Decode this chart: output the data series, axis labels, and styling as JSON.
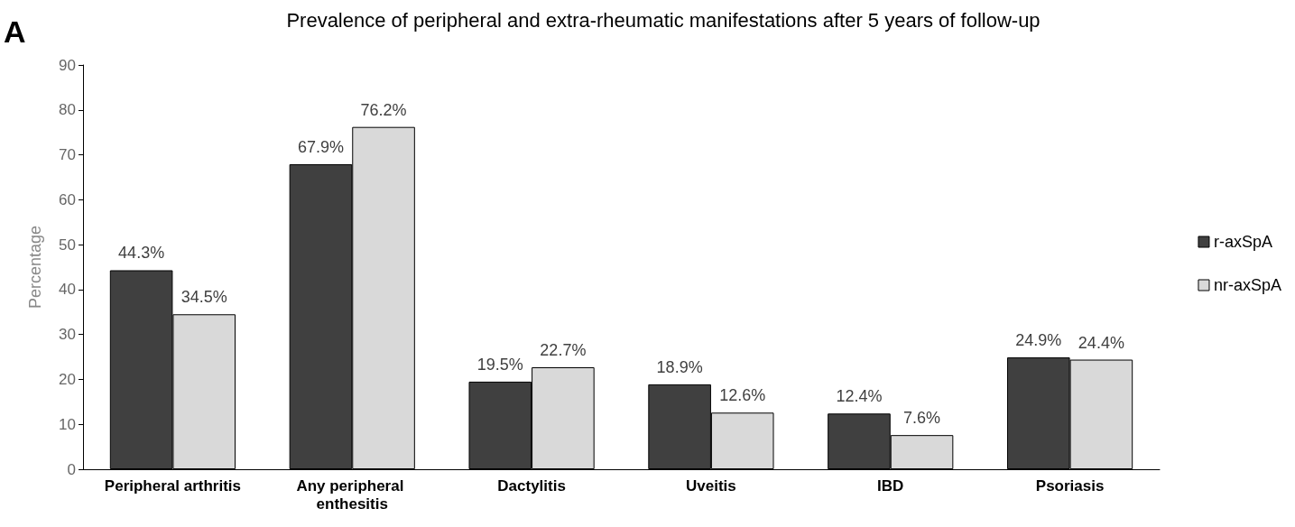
{
  "chart_data": {
    "type": "bar",
    "title": "Prevalence of peripheral and extra-rheumatic manifestations after 5 years of follow-up",
    "ylabel": "Percentage",
    "annotations": [
      "A"
    ],
    "categories": [
      "Peripheral arthritis",
      "Any peripheral enthesitis",
      "Dactylitis",
      "Uveitis",
      "IBD",
      "Psoriasis"
    ],
    "series": [
      {
        "name": "r-axSpA",
        "color": "#404040",
        "values": [
          44.3,
          67.9,
          19.5,
          18.9,
          12.4,
          24.9
        ],
        "value_labels": [
          "44.3%",
          "67.9%",
          "19.5%",
          "18.9%",
          "12.4%",
          "24.9%"
        ]
      },
      {
        "name": "nr-axSpA",
        "color": "#d9d9d9",
        "values": [
          34.5,
          76.2,
          22.7,
          12.6,
          7.6,
          24.4
        ],
        "value_labels": [
          "34.5%",
          "76.2%",
          "22.7%",
          "12.6%",
          "7.6%",
          "24.4%"
        ]
      }
    ],
    "ylim": [
      0,
      90
    ],
    "yticks": [
      0,
      10,
      20,
      30,
      40,
      50,
      60,
      70,
      80,
      90
    ],
    "grid": false,
    "legend": "right"
  }
}
